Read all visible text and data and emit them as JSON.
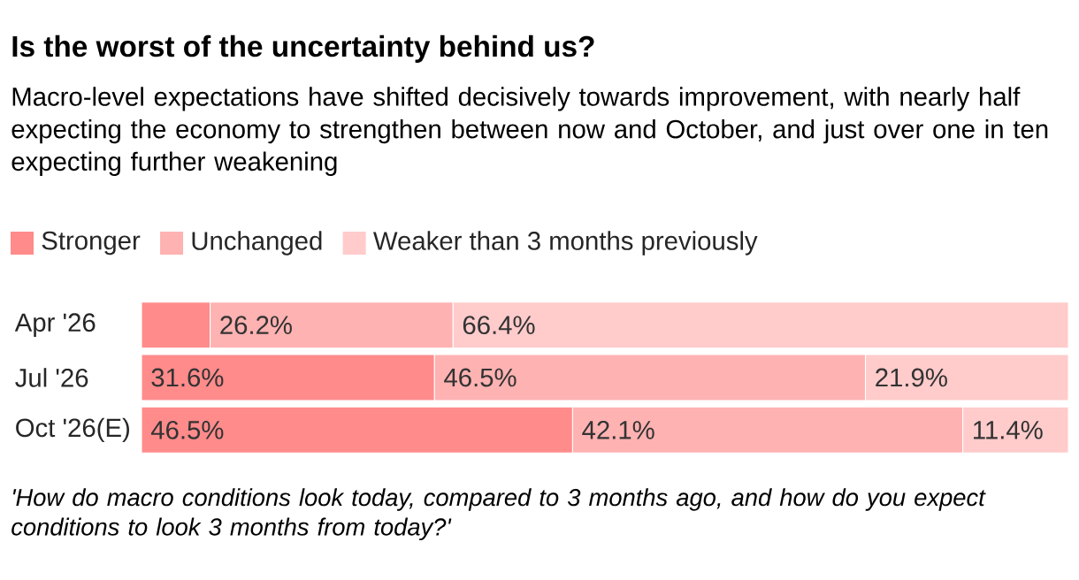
{
  "chart_data": {
    "type": "bar",
    "orientation": "horizontal",
    "stacked": true,
    "title": "Is the worst of the uncertainty behind us?",
    "subtitle": "Macro-level expectations have shifted decisively towards improvement, with nearly half expecting the economy to strengthen between now and October, and just over one in ten expecting further weakening",
    "categories": [
      "Apr '26",
      "Jul '26",
      "Oct '26(E)"
    ],
    "xlim": [
      0,
      100
    ],
    "tick_labels": "y",
    "legend": "top",
    "series": [
      {
        "name": "Stronger",
        "color": "#ff8b8b",
        "values": [
          7.4,
          31.6,
          46.5
        ],
        "value_labels": [
          null,
          "31.6%",
          "46.5%"
        ]
      },
      {
        "name": "Unchanged",
        "color": "#ffb2b2",
        "values": [
          26.2,
          46.5,
          42.1
        ],
        "value_labels": [
          "26.2%",
          "46.5%",
          "42.1%"
        ]
      },
      {
        "name": "Weaker than 3 months previously",
        "color": "#ffcbcb",
        "values": [
          66.4,
          21.9,
          11.4
        ],
        "value_labels": [
          "66.4%",
          "21.9%",
          "11.4%"
        ]
      }
    ],
    "annotations": [
      "'How do macro conditions look today, compared to 3 months ago, and how do you expect conditions to look 3 months from today?'"
    ]
  }
}
